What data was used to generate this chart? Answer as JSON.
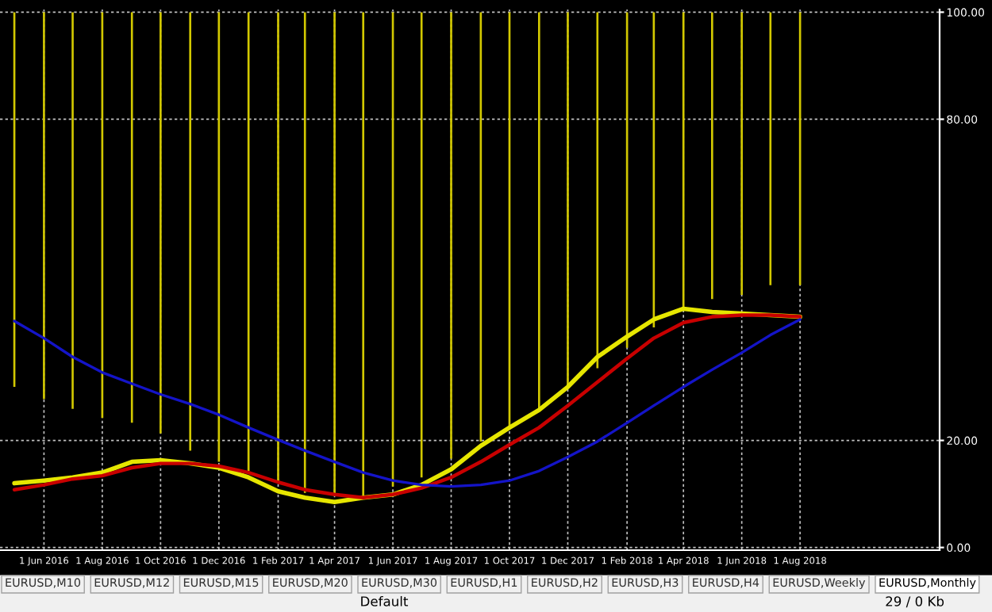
{
  "chart_data": {
    "type": "bar",
    "x": [
      "2016-05",
      "2016-06",
      "2016-07",
      "2016-08",
      "2016-09",
      "2016-10",
      "2016-11",
      "2016-12",
      "2017-01",
      "2017-02",
      "2017-03",
      "2017-04",
      "2017-05",
      "2017-06",
      "2017-07",
      "2017-08",
      "2017-09",
      "2017-10",
      "2017-11",
      "2017-12",
      "2018-01",
      "2018-02",
      "2018-03",
      "2018-04",
      "2018-05",
      "2018-06",
      "2018-07",
      "2018-08"
    ],
    "series": [
      {
        "color": "#d2c800",
        "base": [
          30.0,
          27.7,
          25.9,
          24.2,
          23.3,
          21.3,
          18.1,
          16.0,
          14.3,
          12.0,
          10.2,
          9.6,
          9.6,
          11.4,
          13.1,
          16.6,
          19.8,
          22.2,
          25.9,
          30.0,
          33.5,
          37.3,
          41.1,
          44.6,
          46.4,
          47.2,
          49.0,
          49.0
        ],
        "values": [
          70.0,
          72.3,
          74.1,
          75.8,
          76.7,
          78.7,
          81.9,
          84.0,
          85.7,
          88.0,
          89.8,
          90.4,
          90.4,
          88.6,
          86.9,
          83.4,
          80.2,
          77.8,
          74.1,
          70.0,
          66.5,
          62.7,
          58.9,
          55.4,
          53.6,
          52.8,
          51.0,
          51.0
        ]
      },
      {
        "type": "line",
        "color": "#e6e600",
        "values": [
          12.0,
          12.5,
          13.1,
          14.0,
          16.0,
          16.3,
          15.7,
          14.9,
          13.1,
          10.5,
          9.3,
          8.5,
          9.3,
          9.9,
          11.7,
          14.6,
          19.0,
          22.4,
          25.7,
          30.0,
          35.6,
          39.4,
          42.6,
          44.6,
          44.0,
          43.7,
          43.4,
          43.1
        ]
      },
      {
        "type": "line",
        "color": "#c80000",
        "values": [
          10.8,
          11.7,
          12.8,
          13.4,
          14.9,
          15.7,
          15.7,
          15.2,
          14.0,
          12.2,
          10.8,
          9.9,
          9.3,
          9.9,
          11.1,
          13.1,
          16.0,
          19.2,
          22.4,
          26.5,
          30.9,
          35.3,
          39.1,
          42.0,
          43.1,
          43.4,
          43.4,
          43.1
        ]
      },
      {
        "type": "line",
        "color": "#1414c8",
        "values": [
          42.3,
          39.1,
          35.6,
          32.7,
          30.6,
          28.6,
          26.8,
          24.8,
          22.4,
          20.1,
          18.1,
          16.0,
          14.0,
          12.5,
          11.7,
          11.4,
          11.7,
          12.5,
          14.3,
          16.9,
          19.8,
          23.3,
          26.5,
          30.0,
          33.2,
          36.4,
          39.7,
          42.6
        ]
      }
    ],
    "xlim": [
      "2016-04-16",
      "2018-12-25"
    ],
    "xticks": [
      {
        "value": "2016-06-01",
        "label": "1 Jun 2016"
      },
      {
        "value": "2016-08-01",
        "label": "1 Aug 2016"
      },
      {
        "value": "2016-10-01",
        "label": "1 Oct 2016"
      },
      {
        "value": "2016-12-01",
        "label": "1 Dec 2016"
      },
      {
        "value": "2017-02-01",
        "label": "1 Feb 2017"
      },
      {
        "value": "2017-04-01",
        "label": "1 Apr 2017"
      },
      {
        "value": "2017-06-01",
        "label": "1 Jun 2017"
      },
      {
        "value": "2017-08-01",
        "label": "1 Aug 2017"
      },
      {
        "value": "2017-10-01",
        "label": "1 Oct 2017"
      },
      {
        "value": "2017-12-01",
        "label": "1 Dec 2017"
      },
      {
        "value": "2018-02-01",
        "label": "1 Feb 2018"
      },
      {
        "value": "2018-04-01",
        "label": "1 Apr 2018"
      },
      {
        "value": "2018-06-01",
        "label": "1 Jun 2018"
      },
      {
        "value": "2018-08-01",
        "label": "1 Aug 2018"
      }
    ],
    "ylim": [
      -0.5,
      100.5
    ],
    "yticks": [
      {
        "value": 0,
        "label": "0.00"
      },
      {
        "value": 20,
        "label": "20.00"
      },
      {
        "value": 80,
        "label": "80.00"
      },
      {
        "value": 100,
        "label": "100.00"
      }
    ],
    "grid": true,
    "annotations": [
      "EURUSD,M10",
      "EURUSD,M12",
      "EURUSD,M15",
      "EURUSD,M20",
      "EURUSD,M30",
      "EURUSD,H1",
      "EURUSD,H2",
      "EURUSD,H3",
      "EURUSD,H4",
      "EURUSD,Weekly",
      "EURUSD,Monthly",
      "Default",
      "29 / 0 Kb"
    ]
  }
}
